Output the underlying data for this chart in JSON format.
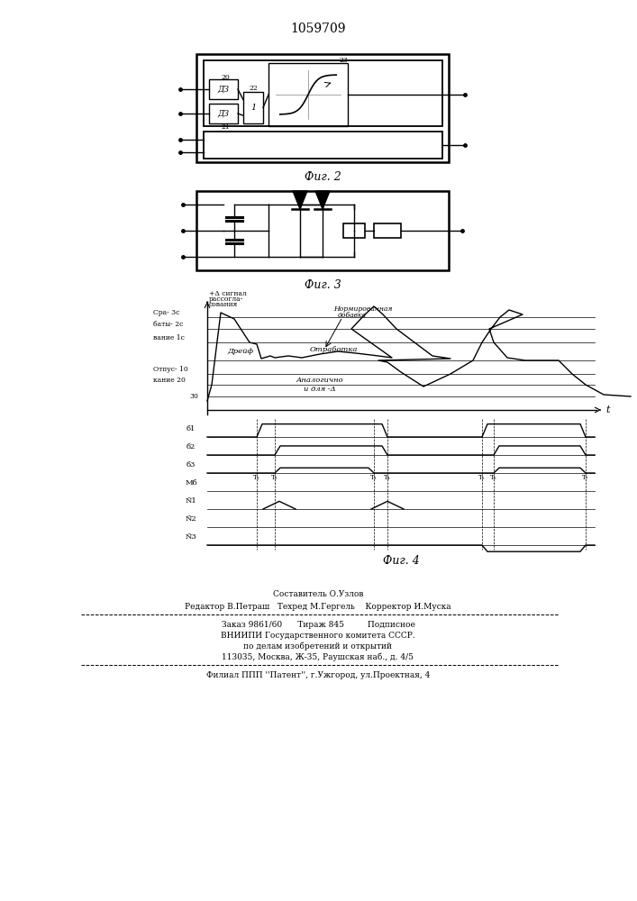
{
  "title": "1059709",
  "background": "#ffffff",
  "fig2_label": "Фиг. 2",
  "fig3_label": "Фиг. 3",
  "fig4_label": "Фиг. 4",
  "footer": {
    "line1": "Составитель О.Узлов",
    "line2": "Редактор В.Петраш   Техред М.Гергель    Корректор И.Муска",
    "line3": "Заказ 9861/60      Тираж 845         Подписное",
    "line4": "ВНИИПИ Государственного комитета СССР.",
    "line5": "по делам изобретений и открытий",
    "line6": "113035, Москва, Ж-35, Раушская наб., д. 4/5",
    "line7": "Филиал ППП ''Патент'', г.Ужгород, ул.Проектная, 4"
  }
}
